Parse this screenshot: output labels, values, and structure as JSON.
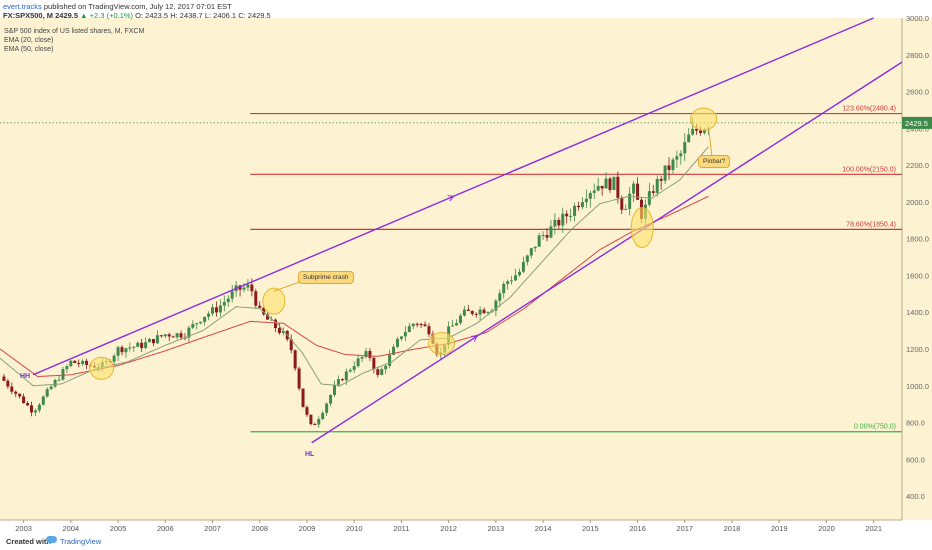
{
  "header": {
    "author": "evert.tracks",
    "published": "published on TradingView.com, July 12, 2017 07:01 EST",
    "symbol": "FX:SPX500, M",
    "last": "2429.5",
    "change": "▲ +2.3 (+0.1%)",
    "o": "O: 2423.5",
    "h": "H: 2438.7",
    "l": "L: 2406.1",
    "c": "C: 2429.5"
  },
  "legend": {
    "series_title": "S&P 500 index of US listed shares, M, FXCM",
    "ema20": "EMA (20, close)",
    "ema50": "EMA (50, close)"
  },
  "footer": {
    "created_with": "Created with",
    "brand": "TradingView"
  },
  "annotations": {
    "subprime": "Subprime crash",
    "pinbar": "Pinbar?",
    "hh": "HH",
    "hl": "HL"
  },
  "price_tag": "2429.5",
  "colors": {
    "background": "#fdf3d3",
    "up_candle": "#3f8a4a",
    "down_candle": "#8b1a1a",
    "trendline": "#8a2be2",
    "fib_line": "#d23838",
    "fib_zero": "#3cb043",
    "ema20": "#8aa07a",
    "ema50": "#d64545",
    "highlight": "#fde36a"
  },
  "chart_data": {
    "type": "candlestick",
    "title": "S&P 500 index of US listed shares, M, FXCM",
    "ylim": [
      270,
      3000
    ],
    "xlim": [
      2002.5,
      2021.6
    ],
    "x_ticks": [
      "2003",
      "2004",
      "2005",
      "2006",
      "2007",
      "2008",
      "2009",
      "2010",
      "2011",
      "2012",
      "2013",
      "2014",
      "2015",
      "2016",
      "2017",
      "2018",
      "2019",
      "2020",
      "2021"
    ],
    "y_ticks": [
      "400.0",
      "600.0",
      "800.0",
      "1000.0",
      "1200.0",
      "1400.0",
      "1600.0",
      "1800.0",
      "2000.0",
      "2200.0",
      "2400.0",
      "2600.0",
      "2800.0",
      "3000.0"
    ],
    "fib_levels": [
      {
        "label": "123.60%(2480.4)",
        "value": 2480.4
      },
      {
        "label": "100.00%(2150.0)",
        "value": 2150.0
      },
      {
        "label": "78.60%(1850.4)",
        "value": 1850.4
      },
      {
        "label": "0.00%(750.0)",
        "value": 750.0
      }
    ],
    "trendlines": [
      {
        "name": "upper",
        "from": [
          2003.2,
          1060
        ],
        "to": [
          2021.0,
          3000
        ]
      },
      {
        "name": "lower",
        "from": [
          2009.1,
          690
        ],
        "to": [
          2021.6,
          2760
        ]
      }
    ],
    "price_anchors": [
      [
        2002.5,
        1050
      ],
      [
        2003.2,
        860
      ],
      [
        2003.6,
        1000
      ],
      [
        2004.0,
        1130
      ],
      [
        2004.4,
        1110
      ],
      [
        2004.7,
        1110
      ],
      [
        2005.0,
        1200
      ],
      [
        2005.5,
        1220
      ],
      [
        2006.0,
        1280
      ],
      [
        2006.4,
        1280
      ],
      [
        2006.8,
        1380
      ],
      [
        2007.1,
        1420
      ],
      [
        2007.5,
        1520
      ],
      [
        2007.8,
        1540
      ],
      [
        2008.0,
        1400
      ],
      [
        2008.2,
        1350
      ],
      [
        2008.5,
        1280
      ],
      [
        2008.7,
        1180
      ],
      [
        2008.9,
        900
      ],
      [
        2009.1,
        770
      ],
      [
        2009.3,
        850
      ],
      [
        2009.6,
        1000
      ],
      [
        2010.0,
        1120
      ],
      [
        2010.3,
        1180
      ],
      [
        2010.5,
        1050
      ],
      [
        2010.8,
        1180
      ],
      [
        2011.0,
        1280
      ],
      [
        2011.3,
        1350
      ],
      [
        2011.6,
        1300
      ],
      [
        2011.8,
        1150
      ],
      [
        2012.0,
        1300
      ],
      [
        2012.3,
        1390
      ],
      [
        2012.6,
        1410
      ],
      [
        2012.9,
        1420
      ],
      [
        2013.2,
        1560
      ],
      [
        2013.5,
        1620
      ],
      [
        2013.9,
        1800
      ],
      [
        2014.2,
        1860
      ],
      [
        2014.6,
        1950
      ],
      [
        2014.9,
        2050
      ],
      [
        2015.2,
        2100
      ],
      [
        2015.5,
        2100
      ],
      [
        2015.7,
        1960
      ],
      [
        2015.9,
        2080
      ],
      [
        2016.1,
        1920
      ],
      [
        2016.3,
        2060
      ],
      [
        2016.6,
        2170
      ],
      [
        2016.9,
        2250
      ],
      [
        2017.1,
        2360
      ],
      [
        2017.3,
        2400
      ],
      [
        2017.53,
        2429.5
      ]
    ],
    "ema20_anchors": [
      [
        2002.5,
        1150
      ],
      [
        2003.2,
        1000
      ],
      [
        2003.8,
        1010
      ],
      [
        2004.5,
        1090
      ],
      [
        2005.2,
        1130
      ],
      [
        2006.0,
        1220
      ],
      [
        2006.8,
        1300
      ],
      [
        2007.5,
        1430
      ],
      [
        2008.0,
        1420
      ],
      [
        2008.4,
        1330
      ],
      [
        2008.9,
        1180
      ],
      [
        2009.3,
        1010
      ],
      [
        2009.7,
        1000
      ],
      [
        2010.2,
        1070
      ],
      [
        2010.8,
        1130
      ],
      [
        2011.4,
        1250
      ],
      [
        2012.0,
        1260
      ],
      [
        2012.6,
        1340
      ],
      [
        2013.3,
        1480
      ],
      [
        2014.0,
        1680
      ],
      [
        2014.6,
        1850
      ],
      [
        2015.2,
        1990
      ],
      [
        2015.8,
        2030
      ],
      [
        2016.3,
        2020
      ],
      [
        2016.9,
        2120
      ],
      [
        2017.5,
        2300
      ]
    ],
    "ema50_anchors": [
      [
        2002.5,
        1200
      ],
      [
        2003.3,
        1050
      ],
      [
        2004.0,
        1060
      ],
      [
        2005.0,
        1110
      ],
      [
        2006.0,
        1190
      ],
      [
        2007.0,
        1280
      ],
      [
        2007.8,
        1350
      ],
      [
        2008.5,
        1340
      ],
      [
        2009.2,
        1220
      ],
      [
        2009.8,
        1170
      ],
      [
        2010.5,
        1160
      ],
      [
        2011.3,
        1200
      ],
      [
        2012.0,
        1230
      ],
      [
        2012.8,
        1290
      ],
      [
        2013.6,
        1420
      ],
      [
        2014.4,
        1580
      ],
      [
        2015.2,
        1740
      ],
      [
        2015.9,
        1840
      ],
      [
        2016.6,
        1920
      ],
      [
        2017.5,
        2030
      ]
    ],
    "highlights": [
      {
        "x": 2004.65,
        "y": 1095,
        "rx": 12,
        "ry": 11
      },
      {
        "x": 2008.3,
        "y": 1460,
        "rx": 11,
        "ry": 13
      },
      {
        "x": 2011.85,
        "y": 1230,
        "rx": 13,
        "ry": 11
      },
      {
        "x": 2016.1,
        "y": 1860,
        "rx": 11,
        "ry": 20
      },
      {
        "x": 2017.4,
        "y": 2450,
        "rx": 13,
        "ry": 11
      }
    ]
  }
}
